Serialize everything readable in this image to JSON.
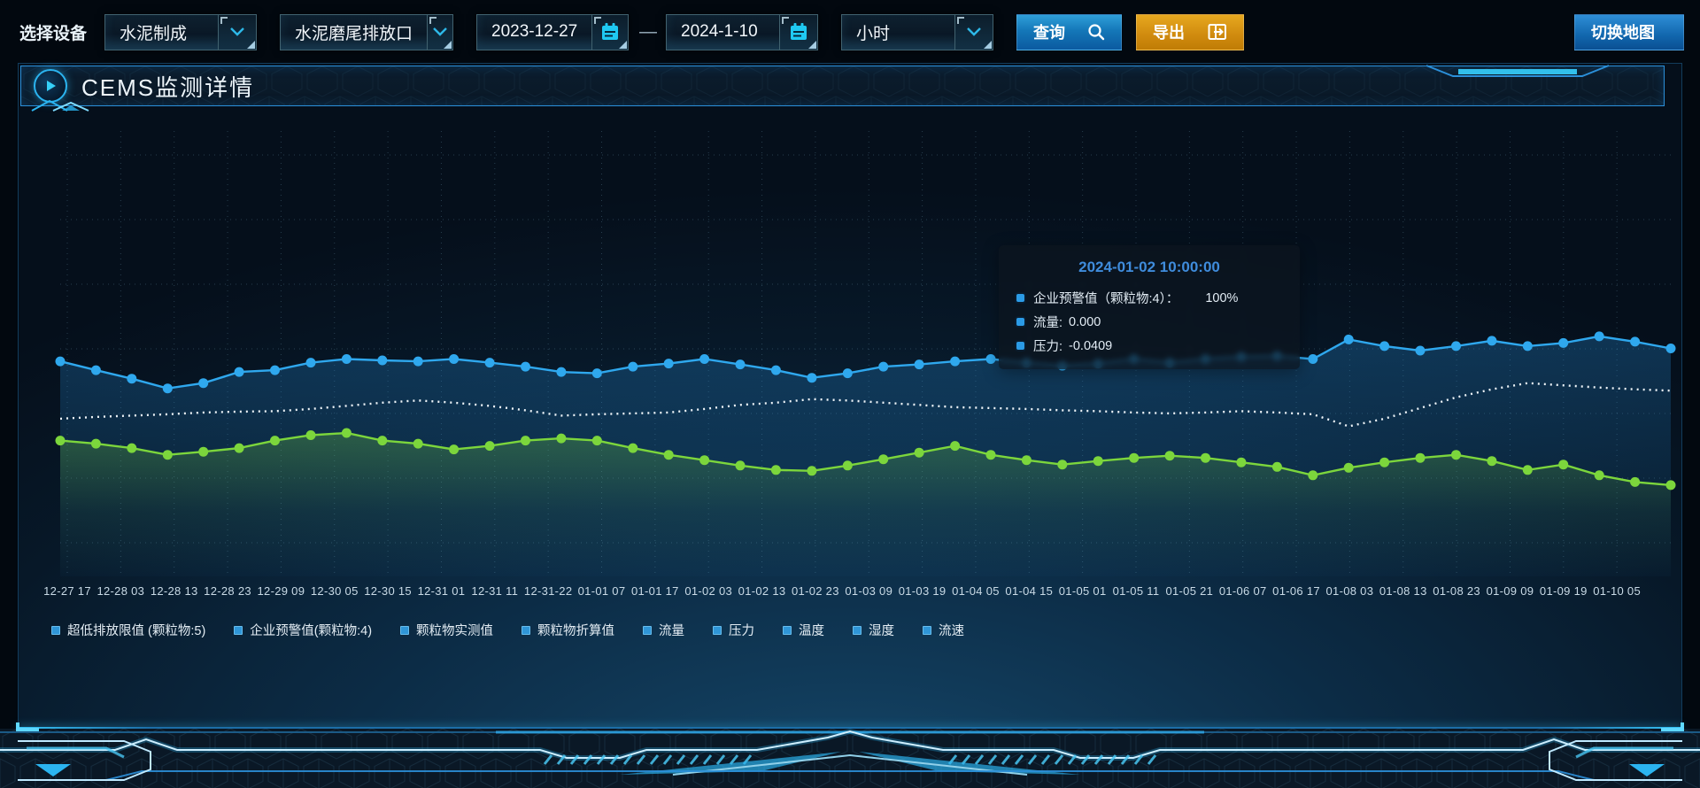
{
  "toolbar": {
    "device_label": "选择设备",
    "device_value": "水泥制成",
    "outlet_value": "水泥磨尾排放口",
    "date_start": "2023-12-27",
    "date_separator": "—",
    "date_end": "2024-1-10",
    "interval_value": "小时",
    "query_label": "查询",
    "export_label": "导出",
    "switch_map_label": "切换地图"
  },
  "panel": {
    "title": "CEMS监测详情"
  },
  "tooltip": {
    "title": "2024-01-02 10:00:00",
    "items": [
      {
        "label": "企业预警值（颗粒物:4）：",
        "value": "100%"
      },
      {
        "label": "流量:",
        "value": "0.000"
      },
      {
        "label": "压力:",
        "value": "-0.0409"
      }
    ]
  },
  "legend": {
    "items": [
      "超低排放限值 (颗粒物:5)",
      "企业预警值(颗粒物:4)",
      "颗粒物实测值",
      "颗粒物折算值",
      "流量",
      "压力",
      "温度",
      "湿度",
      "流速"
    ]
  },
  "icons": {
    "query": "search-icon",
    "export": "export-icon",
    "switch_map": "swap-horizontal-icon",
    "panel_title": "play-icon",
    "date": "calendar-icon",
    "dropdown": "chevron-down-icon"
  },
  "colors": {
    "accent_cyan": "#2bb4f0",
    "line_blue": "#2fa8ee",
    "line_green": "#7cd63c",
    "line_white": "#eef4f8",
    "tooltip_title_blue": "#3f8cdc",
    "query_button_blue": "#1477b8",
    "export_button_amber": "#cf8a0e",
    "legend_marker_blue": "#2f96d8"
  },
  "chart_data": {
    "type": "line",
    "title": "CEMS监测详情",
    "xlabel": "",
    "ylabel": "",
    "ylim": [
      0,
      100
    ],
    "grid": "dotted",
    "legend_position": "bottom",
    "x_labels": [
      "12-27 17",
      "12-28 03",
      "12-28 13",
      "12-28 23",
      "12-29 09",
      "12-30 05",
      "12-30 15",
      "12-31 01",
      "12-31 11",
      "12-31-22",
      "01-01 07",
      "01-01 17",
      "01-02 03",
      "01-02 13",
      "01-02 23",
      "01-03 09",
      "01-03 19",
      "01-04 05",
      "01-04 15",
      "01-05 01",
      "01-05 11",
      "01-05 21",
      "01-06 07",
      "01-06 17",
      "01-08 03",
      "01-08 13",
      "01-08 23",
      "01-09 09",
      "01-09 19",
      "01-10 05"
    ],
    "series": [
      {
        "name": "企业预警值(颗粒物:4)",
        "color": "#2fa8ee",
        "line_style": "solid",
        "markers": true,
        "area": true,
        "values": [
          48.3,
          46.3,
          44.4,
          42.2,
          43.4,
          45.9,
          46.3,
          48.0,
          48.8,
          48.5,
          48.3,
          48.8,
          48.0,
          47.1,
          45.9,
          45.6,
          47.1,
          47.8,
          48.8,
          47.6,
          46.3,
          44.6,
          45.6,
          47.1,
          47.6,
          48.3,
          48.8,
          48.0,
          47.3,
          47.8,
          48.8,
          48.0,
          48.8,
          49.3,
          49.5,
          48.8,
          53.2,
          51.7,
          50.7,
          51.7,
          52.9,
          51.7,
          52.4,
          53.9,
          52.7,
          51.2
        ]
      },
      {
        "name": "超低排放限值 (颗粒物:5)",
        "color": "#eef4f8",
        "line_style": "dotted",
        "markers": false,
        "area": false,
        "values": [
          35.4,
          35.8,
          36.1,
          36.4,
          36.8,
          37.0,
          37.1,
          37.6,
          38.3,
          39.0,
          39.5,
          39.0,
          38.3,
          37.3,
          36.1,
          36.4,
          36.6,
          36.8,
          37.6,
          38.5,
          39.0,
          39.8,
          39.5,
          39.0,
          38.5,
          38.0,
          37.8,
          37.6,
          37.3,
          37.1,
          36.8,
          36.6,
          36.8,
          37.1,
          36.8,
          36.4,
          33.7,
          35.4,
          37.8,
          40.2,
          42.0,
          43.4,
          42.9,
          42.4,
          42.0,
          41.7
        ]
      },
      {
        "name": "颗粒物实测值",
        "color": "#7cd63c",
        "line_style": "solid",
        "markers": true,
        "area": true,
        "values": [
          30.5,
          29.8,
          28.8,
          27.3,
          28.0,
          28.8,
          30.5,
          31.7,
          32.2,
          30.5,
          29.8,
          28.5,
          29.3,
          30.5,
          31.0,
          30.5,
          28.8,
          27.3,
          26.1,
          24.9,
          23.9,
          23.7,
          24.9,
          26.3,
          27.8,
          29.3,
          27.3,
          26.1,
          25.1,
          25.9,
          26.6,
          27.1,
          26.6,
          25.6,
          24.6,
          22.7,
          24.4,
          25.6,
          26.6,
          27.3,
          25.9,
          23.9,
          25.1,
          22.7,
          21.2,
          20.5
        ]
      }
    ]
  }
}
